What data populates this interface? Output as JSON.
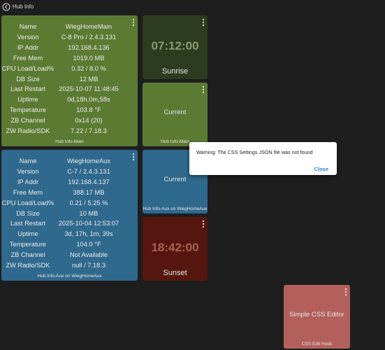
{
  "header": {
    "title": "Hub Info"
  },
  "tiles": [
    {
      "rows": [
        [
          "Name",
          "WiegHomeMain"
        ],
        [
          "Version",
          "C-8 Pro / 2.4.3.131"
        ],
        [
          "IP Addr",
          "192.168.4.136"
        ],
        [
          "Free Mem",
          "1019.0 MB"
        ],
        [
          "CPU Load/Load%",
          "0.32 / 8.0 %"
        ],
        [
          "DB Size",
          "12 MB"
        ],
        [
          "Last Restart",
          "2025-10-07 11:48:45"
        ],
        [
          "Uptime",
          "0d,18h,0m,58s"
        ],
        [
          "Temperature",
          "103.8 °F"
        ],
        [
          "ZB Channel",
          "0x14 (20)"
        ],
        [
          "ZW Radio/SDK",
          "7.22 / 7.18.3"
        ]
      ],
      "footer": "Hub Info-Main"
    },
    {
      "time": "07:12:00",
      "label": "Sunrise"
    },
    {
      "value": "Current",
      "footer": "Hub Info-Main"
    },
    {
      "rows": [
        [
          "Name",
          "WiegHomeAux"
        ],
        [
          "Version",
          "C-7 / 2.4.3.131"
        ],
        [
          "IP Addr",
          "192.168.4.137"
        ],
        [
          "Free Mem",
          "388.17 MB"
        ],
        [
          "CPU Load/Load%",
          "0.21 / 5.25 %"
        ],
        [
          "DB Size",
          "10 MB"
        ],
        [
          "Last Restart",
          "2025-10-04 12:53:07"
        ],
        [
          "Uptime",
          "3d, 17h, 1m, 39s"
        ],
        [
          "Temperature",
          "104.0 °F"
        ],
        [
          "ZB Channel",
          "Not Available"
        ],
        [
          "ZW Radio/SDK",
          "null / 7.18.3"
        ]
      ],
      "footer": "Hub Info-Aux on WiegHomeAux"
    },
    {
      "value": "Current",
      "footer": "Hub Info-Aux on WiegHomeAux"
    },
    {
      "time": "18:42:00",
      "label": "Sunset"
    },
    {
      "label": "Simple CSS Editor",
      "footer": "CSS Edit Hook"
    }
  ],
  "dialog": {
    "message": "Warning: The CSS Settings JSON file was not found",
    "button": "Close"
  }
}
